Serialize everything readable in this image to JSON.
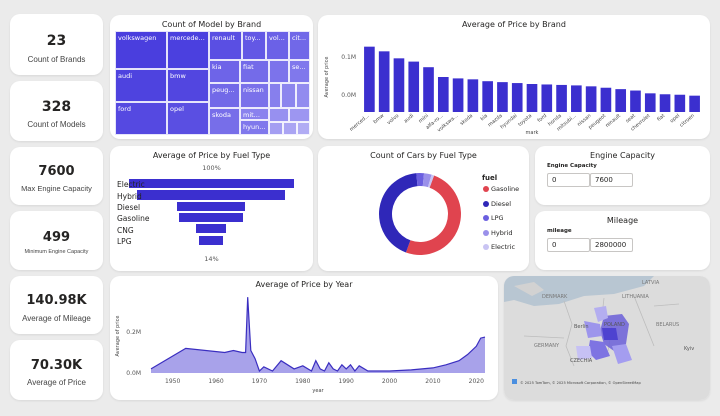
{
  "kpis": {
    "count_brands": {
      "value": "23",
      "label": "Count of Brands"
    },
    "count_models": {
      "value": "328",
      "label": "Count of Models"
    },
    "max_engine": {
      "value": "7600",
      "label": "Max Engine Capacity"
    },
    "min_engine": {
      "value": "499",
      "label": "Minimum Engine Capacity"
    },
    "avg_mileage": {
      "value": "140.98K",
      "label": "Average of Mileage"
    },
    "avg_price": {
      "value": "70.30K",
      "label": "Average of Price"
    }
  },
  "treemap": {
    "title": "Count of Model by Brand",
    "tiles": [
      "volkswagen",
      "mercede...",
      "renault",
      "toy...",
      "vol...",
      "cit...",
      "audi",
      "bmw",
      "kia",
      "fiat",
      "se...",
      "peug...",
      "nissan",
      "mit...",
      "ford",
      "opel",
      "skoda",
      "hyun...",
      "..."
    ]
  },
  "brand_price": {
    "title": "Average of Price by Brand",
    "xlabel": "mark",
    "ylabel": "Average of price",
    "ticks": [
      "0.0M",
      "0.1M"
    ],
    "categories": [
      "merced...",
      "bmw",
      "volvo",
      "audi",
      "mini",
      "alfa-ro...",
      "volkswa...",
      "skoda",
      "kia",
      "mazda",
      "hyundai",
      "toyota",
      "ford",
      "honda",
      "mitsubi...",
      "nissan",
      "peugeot",
      "renault",
      "seat",
      "chevrolet",
      "fiat",
      "opel",
      "citroen"
    ]
  },
  "fuel_price": {
    "title": "Average of Price by Fuel Type",
    "top_label": "100%",
    "bottom_label": "14%",
    "categories": [
      "Electric",
      "Hybrid",
      "Diesel",
      "Gasoline",
      "CNG",
      "LPG"
    ]
  },
  "fuel_count": {
    "title": "Count of Cars by Fuel Type",
    "legend_title": "fuel",
    "legend": [
      "Gasoline",
      "Diesel",
      "LPG",
      "Hybrid",
      "Electric"
    ]
  },
  "engine_slicer": {
    "title": "Engine Capacity",
    "field": "Engine Capacity",
    "min": "0",
    "max": "7600"
  },
  "mileage_slicer": {
    "title": "Mileage",
    "field": "mileage",
    "min": "0",
    "max": "2800000"
  },
  "year_price": {
    "title": "Average of Price by Year",
    "xlabel": "year",
    "ylabel": "Average of price",
    "yticks": [
      "0.0M",
      "0.2M"
    ],
    "xticks": [
      "1950",
      "1960",
      "1970",
      "1980",
      "1990",
      "2000",
      "2010",
      "2020"
    ]
  },
  "map": {
    "attribution": "© 2025 TomTom, © 2025 Microsoft Corporation, © OpenStreetMap",
    "labels": [
      "DENMARK",
      "LATVIA",
      "LITHUANIA",
      "Berlin",
      "GERMANY",
      "POLAND",
      "BELARUS",
      "CZECHIA",
      "Kyiv"
    ]
  },
  "colors": {
    "bar": "#3b2fcf",
    "area_fill": "#a8a2ea",
    "area_line": "#3a2ec0",
    "gasoline": "#e0444f",
    "diesel": "#2f27b8",
    "lpg": "#6b5fe0",
    "hybrid": "#9a90ea",
    "electric": "#c9c4f3"
  },
  "chart_data": [
    {
      "type": "bar",
      "title": "Average of Price by Brand",
      "xlabel": "mark",
      "ylabel": "Average of price",
      "categories": [
        "merced...",
        "bmw",
        "volvo",
        "audi",
        "mini",
        "alfa-ro...",
        "volkswa...",
        "skoda",
        "kia",
        "mazda",
        "hyundai",
        "toyota",
        "ford",
        "honda",
        "mitsubi...",
        "nissan",
        "peugeot",
        "renault",
        "seat",
        "chevrolet",
        "fiat",
        "opel",
        "citroen"
      ],
      "values": [
        140000,
        130000,
        115000,
        108000,
        96000,
        75000,
        72000,
        70000,
        66000,
        64000,
        62000,
        60000,
        59000,
        58000,
        57000,
        55000,
        52000,
        49000,
        46000,
        40000,
        38000,
        37000,
        35000
      ],
      "ylim": [
        0,
        150000
      ]
    },
    {
      "type": "bar",
      "title": "Average of Price by Fuel Type",
      "categories": [
        "Electric",
        "Hybrid",
        "Diesel",
        "Gasoline",
        "CNG",
        "LPG"
      ],
      "values": [
        100,
        90,
        41,
        39,
        18,
        14
      ]
    },
    {
      "type": "pie",
      "title": "Count of Cars by Fuel Type",
      "categories": [
        "Gasoline",
        "Diesel",
        "LPG",
        "Hybrid",
        "Electric"
      ],
      "values": [
        50,
        43,
        3,
        3,
        1
      ]
    },
    {
      "type": "area",
      "title": "Average of Price by Year",
      "xlabel": "year",
      "ylabel": "Average of price",
      "x": [
        1945,
        1953,
        1962,
        1964,
        1966,
        1966.8,
        1967.3,
        1968,
        1969,
        1970,
        1971,
        1973,
        1975,
        1978,
        1980,
        1982,
        1983,
        1984,
        1985,
        1986,
        1987,
        1988,
        1989,
        1990,
        1991,
        1992,
        1993,
        1995,
        2000,
        2005,
        2010,
        2013,
        2016,
        2018,
        2020,
        2021,
        2022
      ],
      "y": [
        20000,
        120000,
        100000,
        110000,
        100000,
        100000,
        370000,
        110000,
        70000,
        10000,
        30000,
        10000,
        60000,
        20000,
        35000,
        10000,
        60000,
        20000,
        10000,
        50000,
        20000,
        10000,
        40000,
        20000,
        40000,
        10000,
        35000,
        10000,
        10000,
        15000,
        25000,
        40000,
        60000,
        90000,
        130000,
        170000,
        175000
      ],
      "ylim": [
        0,
        400000
      ]
    }
  ]
}
